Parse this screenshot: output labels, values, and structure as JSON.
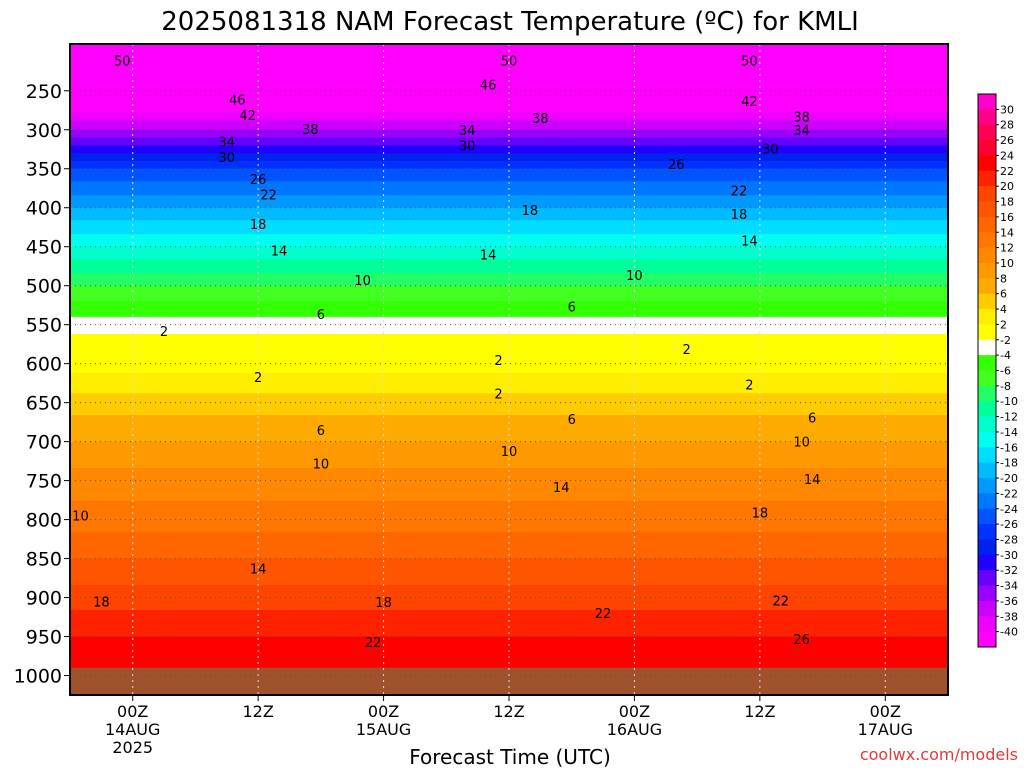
{
  "page": {
    "title": "2025081318 NAM Forecast Temperature (ºC) for KMLI",
    "credit": "coolwx.com/models"
  },
  "chart_data": {
    "type": "heatmap",
    "title": "2025081318 NAM Forecast Temperature (ºC) for KMLI",
    "xlabel": "Forecast Time (UTC)",
    "ylabel": "",
    "x_axis": {
      "range_hours_from_init": [
        0,
        84
      ],
      "ticks": [
        {
          "hour": 6,
          "lines": [
            "00Z",
            "14AUG",
            "2025"
          ]
        },
        {
          "hour": 18,
          "lines": [
            "12Z"
          ]
        },
        {
          "hour": 30,
          "lines": [
            "00Z",
            "15AUG"
          ]
        },
        {
          "hour": 42,
          "lines": [
            "12Z"
          ]
        },
        {
          "hour": 54,
          "lines": [
            "00Z",
            "16AUG"
          ]
        },
        {
          "hour": 66,
          "lines": [
            "12Z"
          ]
        },
        {
          "hour": 78,
          "lines": [
            "00Z",
            "17AUG"
          ]
        }
      ]
    },
    "y_axis": {
      "units": "hPa",
      "range": [
        1025,
        190
      ],
      "ticks": [
        250,
        300,
        350,
        400,
        450,
        500,
        550,
        600,
        650,
        700,
        750,
        800,
        850,
        900,
        950,
        1000
      ]
    },
    "grid": true,
    "ground": {
      "below_hpa": 990,
      "color": "#a0522d"
    },
    "colorbar": {
      "position": "right",
      "labels": [
        30,
        28,
        26,
        24,
        22,
        20,
        18,
        16,
        14,
        12,
        10,
        8,
        6,
        4,
        2,
        -2,
        -4,
        -6,
        -8,
        -10,
        -12,
        -14,
        -16,
        -18,
        -20,
        -22,
        -24,
        -26,
        -28,
        -30,
        -32,
        -34,
        -36,
        -38,
        -40
      ],
      "colors": [
        "#ff00cc",
        "#ff0088",
        "#ff0055",
        "#ff0033",
        "#ff0000",
        "#ff2200",
        "#ff4400",
        "#ff5500",
        "#ff6600",
        "#ff7700",
        "#ff8800",
        "#ff9900",
        "#ffaa00",
        "#ffcc00",
        "#ffee00",
        "#ffff00",
        "#ffffff",
        "#33ff00",
        "#44ff22",
        "#22ff66",
        "#00ff99",
        "#00ffcc",
        "#00ffee",
        "#00ddff",
        "#00bbff",
        "#0099ff",
        "#0077ff",
        "#0055ff",
        "#0033ff",
        "#0022ee",
        "#2200ff",
        "#6600ff",
        "#9900ff",
        "#cc00ff",
        "#ee00ff",
        "#ff00ff"
      ]
    },
    "profile": [
      {
        "p": 1000,
        "t": 24
      },
      {
        "p": 950,
        "t": 22
      },
      {
        "p": 900,
        "t": 19
      },
      {
        "p": 850,
        "t": 16
      },
      {
        "p": 800,
        "t": 13
      },
      {
        "p": 750,
        "t": 11
      },
      {
        "p": 700,
        "t": 8
      },
      {
        "p": 650,
        "t": 5
      },
      {
        "p": 600,
        "t": 1
      },
      {
        "p": 550,
        "t": -3
      },
      {
        "p": 500,
        "t": -8
      },
      {
        "p": 450,
        "t": -14
      },
      {
        "p": 400,
        "t": -20
      },
      {
        "p": 350,
        "t": -26
      },
      {
        "p": 300,
        "t": -36
      },
      {
        "p": 250,
        "t": -45
      },
      {
        "p": 200,
        "t": -53
      }
    ],
    "contour_labels": [
      {
        "hour": 5,
        "p": 211,
        "text": "50"
      },
      {
        "hour": 42,
        "p": 211,
        "text": "50"
      },
      {
        "hour": 65,
        "p": 211,
        "text": "50"
      },
      {
        "hour": 16,
        "p": 261,
        "text": "46"
      },
      {
        "hour": 40,
        "p": 242,
        "text": "46"
      },
      {
        "hour": 17,
        "p": 281,
        "text": "42"
      },
      {
        "hour": 65,
        "p": 263,
        "text": "42"
      },
      {
        "hour": 45,
        "p": 285,
        "text": "38"
      },
      {
        "hour": 70,
        "p": 283,
        "text": "38"
      },
      {
        "hour": 23,
        "p": 299,
        "text": "38"
      },
      {
        "hour": 38,
        "p": 300,
        "text": "34"
      },
      {
        "hour": 70,
        "p": 300,
        "text": "34"
      },
      {
        "hour": 15,
        "p": 315,
        "text": "34"
      },
      {
        "hour": 38,
        "p": 320,
        "text": "30"
      },
      {
        "hour": 67,
        "p": 324,
        "text": "30"
      },
      {
        "hour": 15,
        "p": 335,
        "text": "30"
      },
      {
        "hour": 58,
        "p": 344,
        "text": "26"
      },
      {
        "hour": 18,
        "p": 363,
        "text": "26"
      },
      {
        "hour": 64,
        "p": 378,
        "text": "22"
      },
      {
        "hour": 19,
        "p": 383,
        "text": "22"
      },
      {
        "hour": 44,
        "p": 403,
        "text": "18"
      },
      {
        "hour": 64,
        "p": 408,
        "text": "18"
      },
      {
        "hour": 18,
        "p": 421,
        "text": "18"
      },
      {
        "hour": 65,
        "p": 442,
        "text": "14"
      },
      {
        "hour": 20,
        "p": 455,
        "text": "14"
      },
      {
        "hour": 40,
        "p": 460,
        "text": "14"
      },
      {
        "hour": 54,
        "p": 486,
        "text": "10"
      },
      {
        "hour": 28,
        "p": 493,
        "text": "10"
      },
      {
        "hour": 48,
        "p": 527,
        "text": "6"
      },
      {
        "hour": 24,
        "p": 536,
        "text": "6"
      },
      {
        "hour": 9,
        "p": 558,
        "text": "2"
      },
      {
        "hour": 59,
        "p": 581,
        "text": "2"
      },
      {
        "hour": 41,
        "p": 595,
        "text": "2"
      },
      {
        "hour": 18,
        "p": 617,
        "text": "2"
      },
      {
        "hour": 41,
        "p": 638,
        "text": "2"
      },
      {
        "hour": 65,
        "p": 627,
        "text": "2"
      },
      {
        "hour": 48,
        "p": 671,
        "text": "6"
      },
      {
        "hour": 24,
        "p": 685,
        "text": "6"
      },
      {
        "hour": 71,
        "p": 669,
        "text": "6"
      },
      {
        "hour": 42,
        "p": 712,
        "text": "10"
      },
      {
        "hour": 24,
        "p": 728,
        "text": "10"
      },
      {
        "hour": 70,
        "p": 700,
        "text": "10"
      },
      {
        "hour": 47,
        "p": 758,
        "text": "14"
      },
      {
        "hour": 71,
        "p": 748,
        "text": "14"
      },
      {
        "hour": 66,
        "p": 791,
        "text": "18"
      },
      {
        "hour": 1,
        "p": 795,
        "text": "10"
      },
      {
        "hour": 18,
        "p": 863,
        "text": "14"
      },
      {
        "hour": 3,
        "p": 905,
        "text": "18"
      },
      {
        "hour": 30,
        "p": 906,
        "text": "18"
      },
      {
        "hour": 51,
        "p": 920,
        "text": "22"
      },
      {
        "hour": 68,
        "p": 904,
        "text": "22"
      },
      {
        "hour": 29,
        "p": 957,
        "text": "22"
      },
      {
        "hour": 70,
        "p": 953,
        "text": "26"
      }
    ]
  }
}
